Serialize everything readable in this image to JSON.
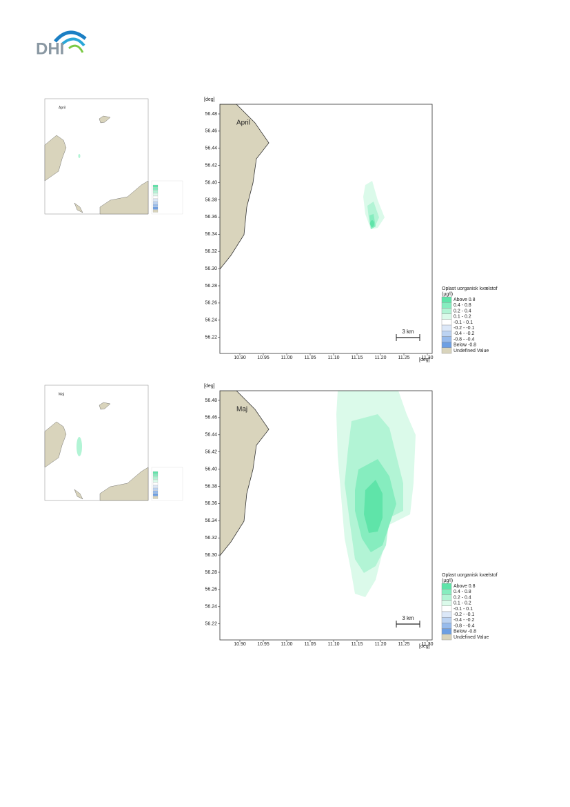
{
  "logo": "DHI",
  "axis_unit": "[deg]",
  "x_ticks": [
    "10.90",
    "10.95",
    "11.00",
    "11.05",
    "11.10",
    "11.15",
    "11.20",
    "11.25",
    "11.30"
  ],
  "y_ticks": [
    "56.48",
    "56.46",
    "56.44",
    "56.42",
    "56.40",
    "56.38",
    "56.36",
    "56.34",
    "56.32",
    "56.30",
    "56.28",
    "56.26",
    "56.24",
    "56.22"
  ],
  "scale_bar": "3 km",
  "legend": {
    "title": "Oplast uorganisk kvælstof",
    "unit": "(µg/l)",
    "items": [
      "Above 0.8",
      "0.4 - 0.8",
      "0.2 - 0.4",
      "0.1 - 0.2",
      "-0.1 - 0.1",
      "-0.2 - -0.1",
      "-0.4 - -0.2",
      "-0.8 - -0.4",
      "Below -0.8",
      "Undefined Value"
    ]
  },
  "panels": [
    {
      "label": "April"
    },
    {
      "label": "Maj"
    }
  ]
}
